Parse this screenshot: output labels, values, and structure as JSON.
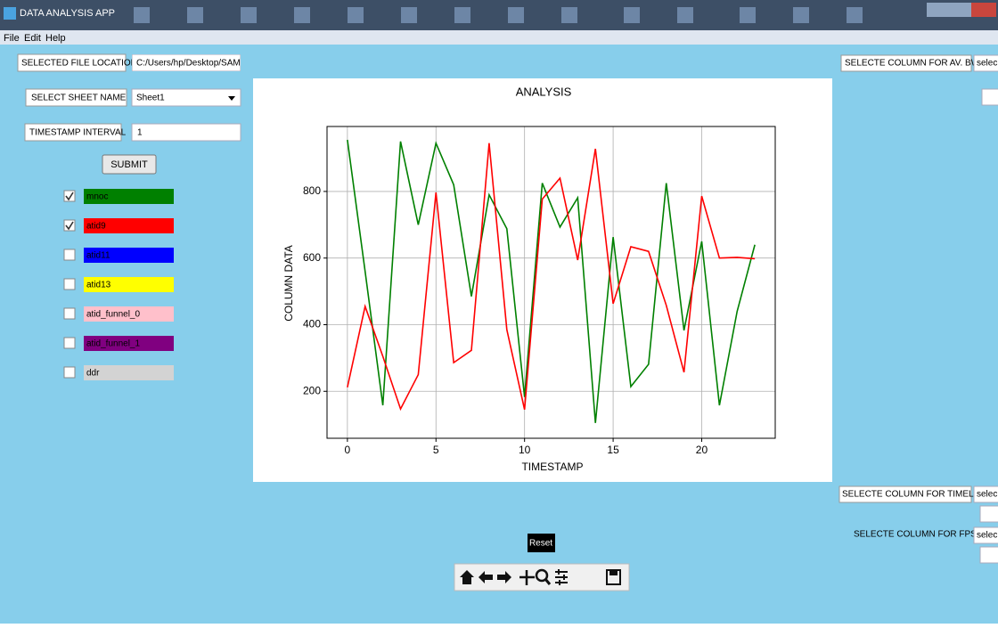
{
  "window": {
    "title": "DATA ANALYSIS APP"
  },
  "menu": [
    "File",
    "Edit",
    "Help"
  ],
  "form": {
    "file_location": {
      "label": "SELECTED FILE LOCATION",
      "value": "C:/Users/hp/Desktop/SAM"
    },
    "sheet": {
      "label": "SELECT SHEET NAME",
      "value": "Sheet1"
    },
    "interval": {
      "label": "TIMESTAMP INTERVAL",
      "value": "1"
    },
    "submit": "SUBMIT"
  },
  "columns": [
    {
      "label": "mnoc",
      "color": "#008000",
      "checked": true
    },
    {
      "label": "atid9",
      "color": "#ff0000",
      "checked": true
    },
    {
      "label": "atid11",
      "color": "#0000ff",
      "checked": false
    },
    {
      "label": "atid13",
      "color": "#ffff00",
      "checked": false
    },
    {
      "label": "atid_funnel_0",
      "color": "#ffc0cb",
      "checked": false
    },
    {
      "label": "atid_funnel_1",
      "color": "#800080",
      "checked": false
    },
    {
      "label": "ddr",
      "color": "#d3d3d3",
      "checked": false
    }
  ],
  "right_panel": {
    "av_bw": {
      "label": "SELECTE COLUMN FOR AV. BW.",
      "value": "selec"
    },
    "timeline": {
      "label": "SELECTE COLUMN FOR TIMELINE",
      "value": "selec"
    },
    "fps": {
      "label": "SELECTE COLUMN FOR FPS",
      "value": "selec"
    }
  },
  "reset": "Reset",
  "chart_data": {
    "type": "line",
    "title": "ANALYSIS",
    "x_label": "TIMESTAMP",
    "y_label": "COLUMN DATA",
    "x": [
      0,
      1,
      2,
      3,
      4,
      5,
      6,
      7,
      8,
      9,
      10,
      11,
      12,
      13,
      14,
      15,
      16,
      17,
      18,
      19,
      20,
      21,
      22,
      23
    ],
    "series": [
      {
        "color": "#008000",
        "values": [
          955,
          560,
          158,
          950,
          700,
          945,
          820,
          485,
          790,
          688,
          183,
          825,
          693,
          781,
          105,
          663,
          214,
          281,
          825,
          383,
          650,
          158,
          440,
          640
        ]
      },
      {
        "color": "#ff0000",
        "values": [
          212,
          455,
          305,
          147,
          250,
          797,
          286,
          323,
          945,
          385,
          145,
          777,
          840,
          594,
          928,
          463,
          634,
          620,
          458,
          257,
          786,
          600,
          602,
          598
        ]
      }
    ],
    "xlim": [
      -1.15,
      24.15
    ],
    "ylim": [
      59,
      995
    ],
    "xticks": [
      0,
      5,
      10,
      15,
      20
    ],
    "yticks": [
      200,
      400,
      600,
      800
    ],
    "grid": true
  }
}
